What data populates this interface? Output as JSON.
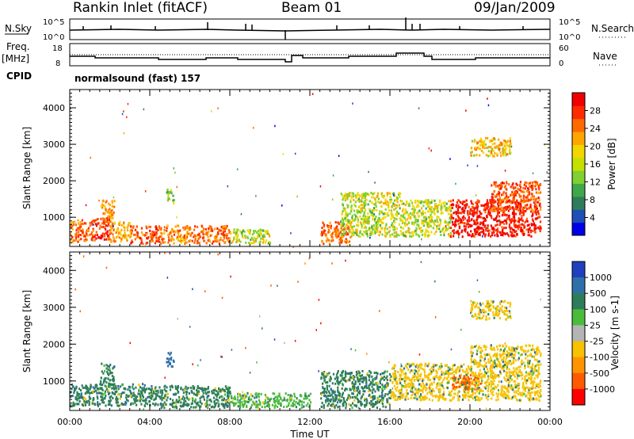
{
  "header": {
    "station": "Rankin Inlet (fitACF)",
    "beam": "Beam 01",
    "date": "09/Jan/2009"
  },
  "top_panels": {
    "nsky_label": "N.Sky",
    "nsearch_label": "N.Search",
    "freq_label_1": "Freq.",
    "freq_label_2": "[MHz]",
    "nave_label": "Nave",
    "cpid_label": "CPID",
    "cpid_value": "normalsound (fast) 157",
    "noise_ticks_left": [
      "10^5",
      "10^0"
    ],
    "noise_ticks_right": [
      "10^5",
      "10^0"
    ],
    "freq_ticks": [
      "18",
      "8"
    ],
    "nave_ticks": [
      "60",
      "0"
    ]
  },
  "colors": {
    "power_scale": [
      "#0000e6",
      "#1d4fb4",
      "#2e7d5a",
      "#3fa84a",
      "#7fd030",
      "#f2d600",
      "#ffa500",
      "#ff6a00",
      "#ff2a00",
      "#f00000"
    ],
    "velocity_scale": [
      "#1f3fbf",
      "#2f6fa8",
      "#2e7d5a",
      "#4cbb3c",
      "#b4b4b4",
      "#f7c200",
      "#ff9400",
      "#ff5a00",
      "#ff0000"
    ]
  },
  "chart_data": [
    {
      "type": "heatmap",
      "name": "power",
      "xlabel": "",
      "ylabel": "Slant Range [km]",
      "x_ticks": [
        "00:00",
        "04:00",
        "08:00",
        "12:00",
        "16:00",
        "20:00",
        "00:00"
      ],
      "y_ticks": [
        1000,
        2000,
        3000,
        4000
      ],
      "ylim": [
        200,
        4500
      ],
      "colorbar_label": "Power [dB]",
      "colorbar_ticks": [
        4,
        8,
        12,
        16,
        20,
        24,
        28
      ],
      "regions": [
        {
          "x": [
            0.0,
            1.2
          ],
          "y": [
            350,
            950
          ],
          "value": 22
        },
        {
          "x": [
            1.2,
            2.0
          ],
          "y": [
            400,
            1000
          ],
          "value": 26
        },
        {
          "x": [
            1.5,
            2.2
          ],
          "y": [
            900,
            1500
          ],
          "value": 20
        },
        {
          "x": [
            2.0,
            3.0
          ],
          "y": [
            350,
            900
          ],
          "value": 18
        },
        {
          "x": [
            3.0,
            4.5
          ],
          "y": [
            300,
            800
          ],
          "value": 24
        },
        {
          "x": [
            4.5,
            6.0
          ],
          "y": [
            300,
            800
          ],
          "value": 20
        },
        {
          "x": [
            4.8,
            5.2
          ],
          "y": [
            1400,
            1800
          ],
          "value": 10
        },
        {
          "x": [
            6.0,
            8.0
          ],
          "y": [
            300,
            800
          ],
          "value": 22
        },
        {
          "x": [
            8.0,
            10.0
          ],
          "y": [
            300,
            700
          ],
          "value": 12
        },
        {
          "x": [
            12.5,
            14.0
          ],
          "y": [
            300,
            900
          ],
          "value": 22
        },
        {
          "x": [
            13.5,
            16.5
          ],
          "y": [
            500,
            1700
          ],
          "value": 12
        },
        {
          "x": [
            16.5,
            19.0
          ],
          "y": [
            500,
            1500
          ],
          "value": 12
        },
        {
          "x": [
            19.0,
            23.5
          ],
          "y": [
            500,
            1500
          ],
          "value": 28
        },
        {
          "x": [
            21.0,
            23.5
          ],
          "y": [
            1200,
            2000
          ],
          "value": 24
        },
        {
          "x": [
            20.0,
            22.0
          ],
          "y": [
            2700,
            3200
          ],
          "value": 16
        }
      ]
    },
    {
      "type": "heatmap",
      "name": "velocity",
      "xlabel": "Time UT",
      "ylabel": "Slant Range [km]",
      "x_ticks": [
        "00:00",
        "04:00",
        "08:00",
        "12:00",
        "16:00",
        "20:00",
        "00:00"
      ],
      "y_ticks": [
        1000,
        2000,
        3000,
        4000
      ],
      "ylim": [
        200,
        4500
      ],
      "colorbar_label": "Velocity [m s-1]",
      "colorbar_ticks": [
        "1000",
        "500",
        "100",
        "25",
        "-25",
        "-100",
        "-500",
        "-1000"
      ],
      "regions": [
        {
          "x": [
            0.0,
            4.0
          ],
          "y": [
            350,
            950
          ],
          "value": 100
        },
        {
          "x": [
            1.5,
            2.2
          ],
          "y": [
            900,
            1500
          ],
          "value": 100
        },
        {
          "x": [
            4.0,
            8.0
          ],
          "y": [
            300,
            900
          ],
          "value": 100
        },
        {
          "x": [
            4.8,
            5.2
          ],
          "y": [
            1400,
            1800
          ],
          "value": 500
        },
        {
          "x": [
            8.0,
            12.0
          ],
          "y": [
            300,
            700
          ],
          "value": 25
        },
        {
          "x": [
            12.5,
            16.0
          ],
          "y": [
            300,
            1300
          ],
          "value": 100
        },
        {
          "x": [
            16.0,
            20.0
          ],
          "y": [
            500,
            1500
          ],
          "value": -100
        },
        {
          "x": [
            19.0,
            20.5
          ],
          "y": [
            800,
            1200
          ],
          "value": -1000
        },
        {
          "x": [
            20.0,
            23.5
          ],
          "y": [
            500,
            2000
          ],
          "value": -100
        },
        {
          "x": [
            20.0,
            22.0
          ],
          "y": [
            2700,
            3200
          ],
          "value": -100
        }
      ]
    }
  ]
}
